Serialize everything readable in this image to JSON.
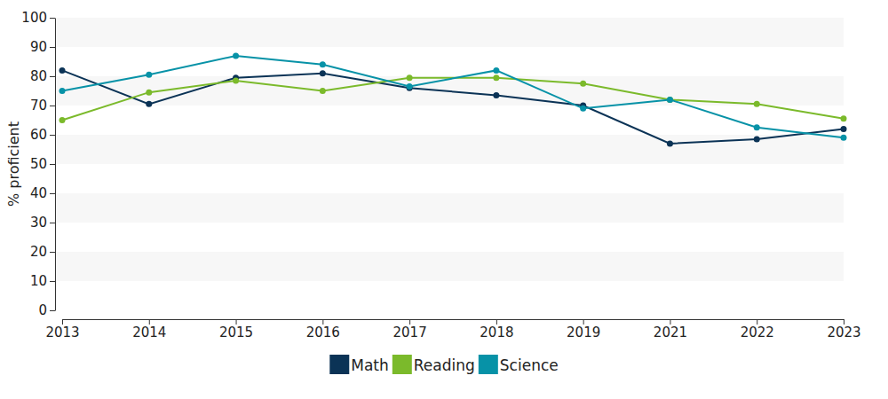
{
  "chart_data": {
    "type": "line",
    "y_label": "% proficient",
    "categories": [
      "2013",
      "2014",
      "2015",
      "2016",
      "2017",
      "2018",
      "2019",
      "2021",
      "2022",
      "2023"
    ],
    "series": [
      {
        "name": "Math",
        "color": "#0b3356",
        "values": [
          82,
          70.5,
          79.5,
          81,
          76,
          73.5,
          70,
          57,
          58.5,
          62
        ]
      },
      {
        "name": "Reading",
        "color": "#7bba2b",
        "values": [
          65,
          74.5,
          78.5,
          75,
          79.5,
          79.5,
          77.5,
          72,
          70.5,
          65.5
        ]
      },
      {
        "name": "Science",
        "color": "#0792a7",
        "values": [
          75,
          80.5,
          87,
          84,
          76.5,
          82,
          69,
          72,
          62.5,
          59
        ]
      }
    ],
    "ylim": [
      0,
      100
    ],
    "yticks": [
      0,
      10,
      20,
      30,
      40,
      50,
      60,
      70,
      80,
      90,
      100
    ],
    "grid": true,
    "legend": "bottom",
    "marker": "circle"
  }
}
